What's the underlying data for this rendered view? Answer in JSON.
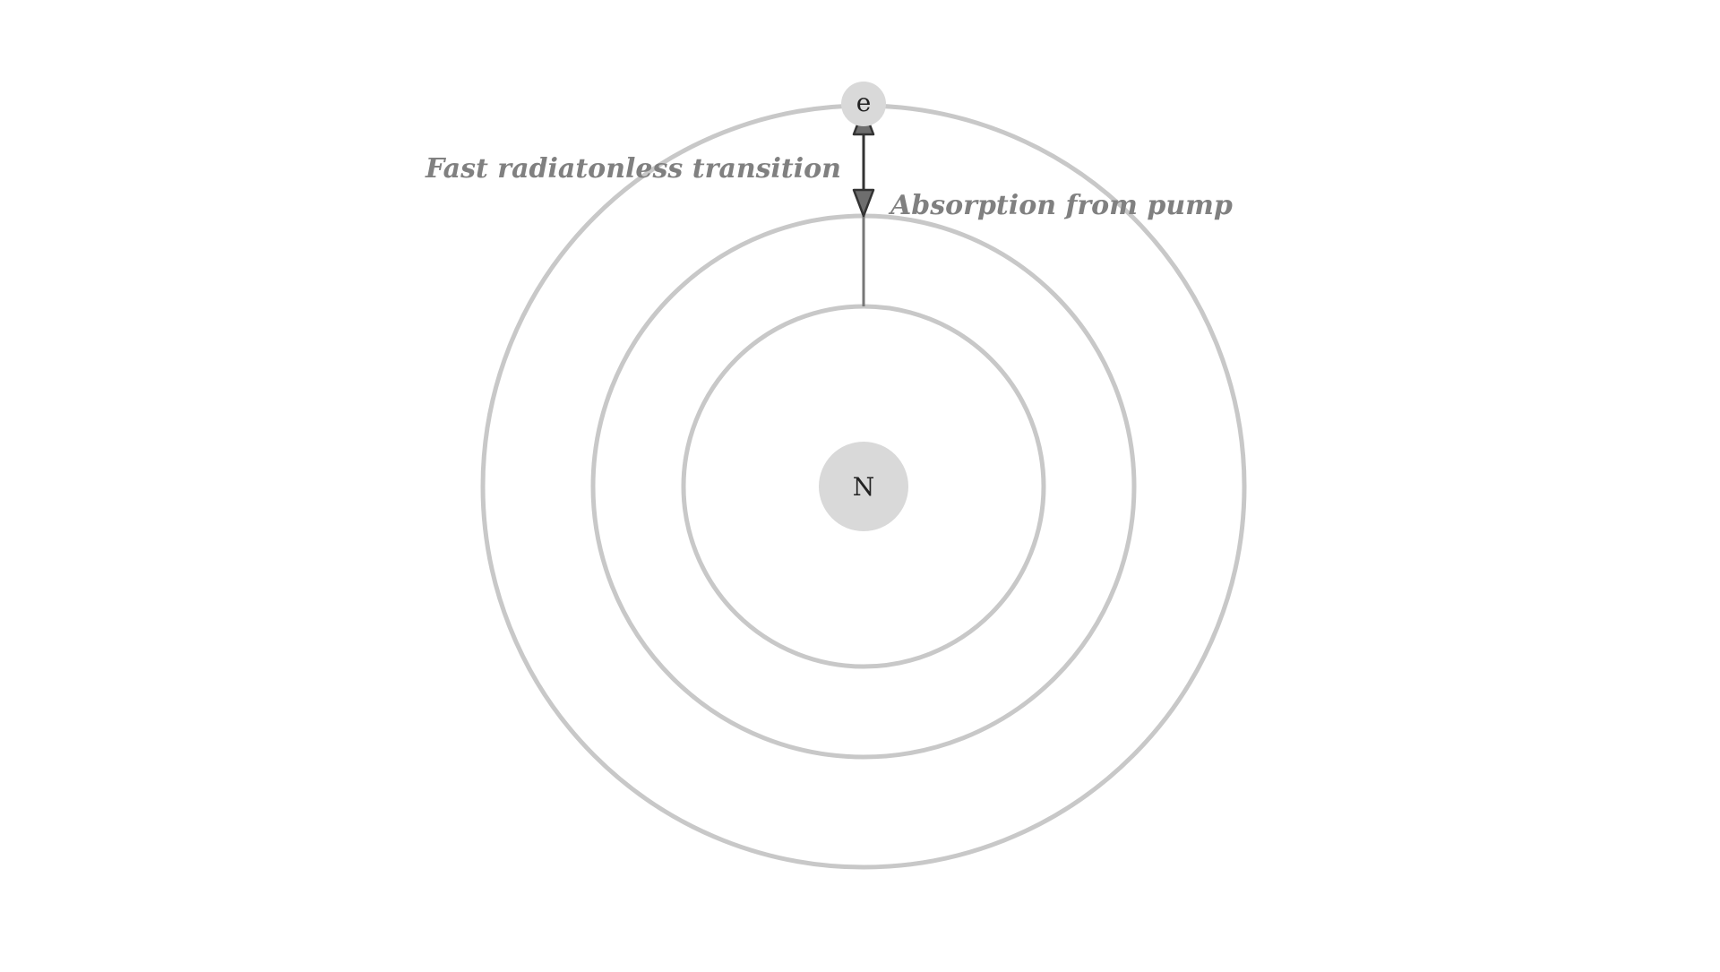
{
  "diagram": {
    "nucleus_label": "N",
    "electron_label": "e",
    "labels": {
      "fast_transition": "Fast radiatonless transition",
      "absorption": "Absorption from pump"
    },
    "colors": {
      "orbit": "#c8c8c8",
      "particle": "#d9d9d9",
      "caption": "#808080",
      "arrow": "#333333"
    }
  }
}
